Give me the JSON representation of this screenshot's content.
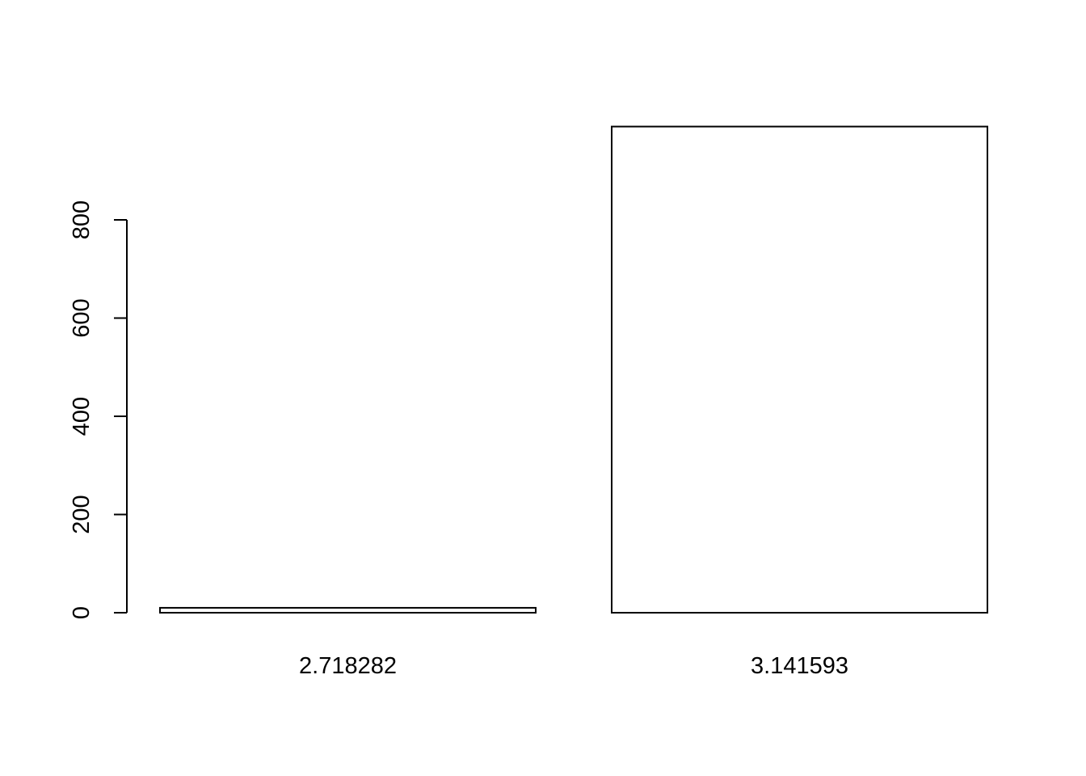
{
  "chart_data": {
    "type": "bar",
    "title": "",
    "xlabel": "",
    "ylabel": "",
    "categories": [
      "2.718282",
      "3.141593"
    ],
    "values": [
      10,
      990
    ],
    "y_ticks": [
      0,
      200,
      400,
      600,
      800
    ],
    "ylim": [
      0,
      990
    ],
    "grid": false,
    "colors": {
      "bar_fill": "#ffffff",
      "bar_stroke": "#000000",
      "axis": "#000000",
      "background": "#ffffff"
    }
  }
}
